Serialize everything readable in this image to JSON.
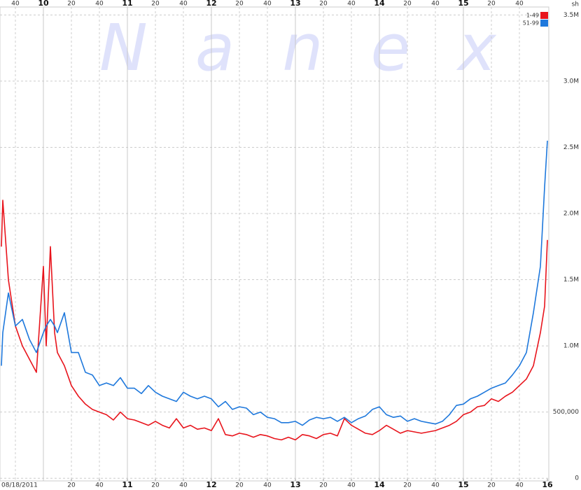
{
  "chart_data": {
    "type": "line",
    "watermark": "Nanex",
    "y_unit": "sh",
    "date_label": "08/18/2011",
    "legend": "top-right",
    "grid": true,
    "xlim": [
      569,
      961
    ],
    "ylim": [
      -20000,
      3560000
    ],
    "yticks": [
      0,
      {
        "value": 500000,
        "label": "500,000"
      },
      {
        "value": 1000000,
        "label": "1.0M"
      },
      {
        "value": 1500000,
        "label": "1.5M"
      },
      {
        "value": 2000000,
        "label": "2.0M"
      },
      {
        "value": 2500000,
        "label": "2.5M"
      },
      {
        "value": 3000000,
        "label": "3.0M"
      },
      {
        "value": 3500000,
        "label": "3.5M"
      }
    ],
    "top_xticks": [
      {
        "value": 580,
        "label": "40"
      },
      {
        "value": 600,
        "label": "10"
      },
      {
        "value": 620,
        "label": "20"
      },
      {
        "value": 640,
        "label": "40"
      },
      {
        "value": 660,
        "label": "11"
      },
      {
        "value": 680,
        "label": "20"
      },
      {
        "value": 700,
        "label": "40"
      },
      {
        "value": 720,
        "label": "12"
      },
      {
        "value": 740,
        "label": "20"
      },
      {
        "value": 760,
        "label": "40"
      },
      {
        "value": 780,
        "label": "13"
      },
      {
        "value": 800,
        "label": "20"
      },
      {
        "value": 820,
        "label": "40"
      },
      {
        "value": 840,
        "label": "14"
      },
      {
        "value": 860,
        "label": "20"
      },
      {
        "value": 880,
        "label": "40"
      },
      {
        "value": 900,
        "label": "15"
      },
      {
        "value": 920,
        "label": "20"
      },
      {
        "value": 940,
        "label": "40"
      }
    ],
    "xticks": [
      {
        "value": 620,
        "label": "20"
      },
      {
        "value": 640,
        "label": "40"
      },
      {
        "value": 660,
        "label": "11"
      },
      {
        "value": 680,
        "label": "20"
      },
      {
        "value": 700,
        "label": "40"
      },
      {
        "value": 720,
        "label": "12"
      },
      {
        "value": 740,
        "label": "20"
      },
      {
        "value": 760,
        "label": "40"
      },
      {
        "value": 780,
        "label": "13"
      },
      {
        "value": 800,
        "label": "20"
      },
      {
        "value": 820,
        "label": "40"
      },
      {
        "value": 840,
        "label": "14"
      },
      {
        "value": 860,
        "label": "20"
      },
      {
        "value": 880,
        "label": "40"
      },
      {
        "value": 900,
        "label": "15"
      },
      {
        "value": 920,
        "label": "20"
      },
      {
        "value": 940,
        "label": "40"
      },
      {
        "value": 960,
        "label": "16"
      }
    ],
    "x": [
      570,
      571,
      575,
      580,
      585,
      590,
      595,
      600,
      602,
      605,
      608,
      610,
      615,
      620,
      625,
      630,
      635,
      640,
      645,
      650,
      655,
      660,
      665,
      670,
      675,
      680,
      685,
      690,
      695,
      700,
      705,
      710,
      715,
      720,
      725,
      730,
      735,
      740,
      745,
      750,
      755,
      760,
      765,
      770,
      775,
      780,
      785,
      790,
      795,
      800,
      805,
      810,
      815,
      820,
      825,
      830,
      835,
      840,
      845,
      850,
      855,
      860,
      865,
      870,
      875,
      880,
      885,
      890,
      895,
      900,
      905,
      910,
      915,
      920,
      925,
      930,
      935,
      940,
      945,
      950,
      955,
      958,
      960
    ],
    "series": [
      {
        "name": "1-49",
        "color": "#e8141c",
        "values": [
          1750000,
          2100000,
          1500000,
          1150000,
          1000000,
          900000,
          800000,
          1600000,
          1000000,
          1750000,
          1100000,
          950000,
          850000,
          700000,
          620000,
          560000,
          520000,
          500000,
          480000,
          440000,
          500000,
          450000,
          440000,
          420000,
          400000,
          430000,
          400000,
          380000,
          450000,
          380000,
          400000,
          370000,
          380000,
          360000,
          450000,
          330000,
          320000,
          340000,
          330000,
          310000,
          330000,
          320000,
          300000,
          290000,
          310000,
          290000,
          330000,
          320000,
          300000,
          330000,
          340000,
          320000,
          450000,
          400000,
          370000,
          340000,
          330000,
          360000,
          400000,
          370000,
          340000,
          360000,
          350000,
          340000,
          350000,
          360000,
          380000,
          400000,
          430000,
          480000,
          500000,
          540000,
          550000,
          600000,
          580000,
          620000,
          650000,
          700000,
          750000,
          850000,
          1100000,
          1300000,
          1800000
        ]
      },
      {
        "name": "51-99",
        "color": "#1e78dc",
        "values": [
          850000,
          1100000,
          1400000,
          1150000,
          1200000,
          1050000,
          950000,
          1100000,
          1150000,
          1200000,
          1150000,
          1100000,
          1250000,
          950000,
          950000,
          800000,
          780000,
          700000,
          720000,
          700000,
          760000,
          680000,
          680000,
          640000,
          700000,
          650000,
          620000,
          600000,
          580000,
          650000,
          620000,
          600000,
          620000,
          600000,
          540000,
          580000,
          520000,
          540000,
          530000,
          480000,
          500000,
          460000,
          450000,
          420000,
          420000,
          430000,
          400000,
          440000,
          460000,
          450000,
          460000,
          430000,
          460000,
          420000,
          450000,
          470000,
          520000,
          540000,
          480000,
          460000,
          470000,
          430000,
          450000,
          430000,
          420000,
          410000,
          430000,
          480000,
          550000,
          560000,
          600000,
          620000,
          650000,
          680000,
          700000,
          720000,
          780000,
          850000,
          950000,
          1250000,
          1600000,
          2200000,
          2550000
        ]
      }
    ]
  }
}
